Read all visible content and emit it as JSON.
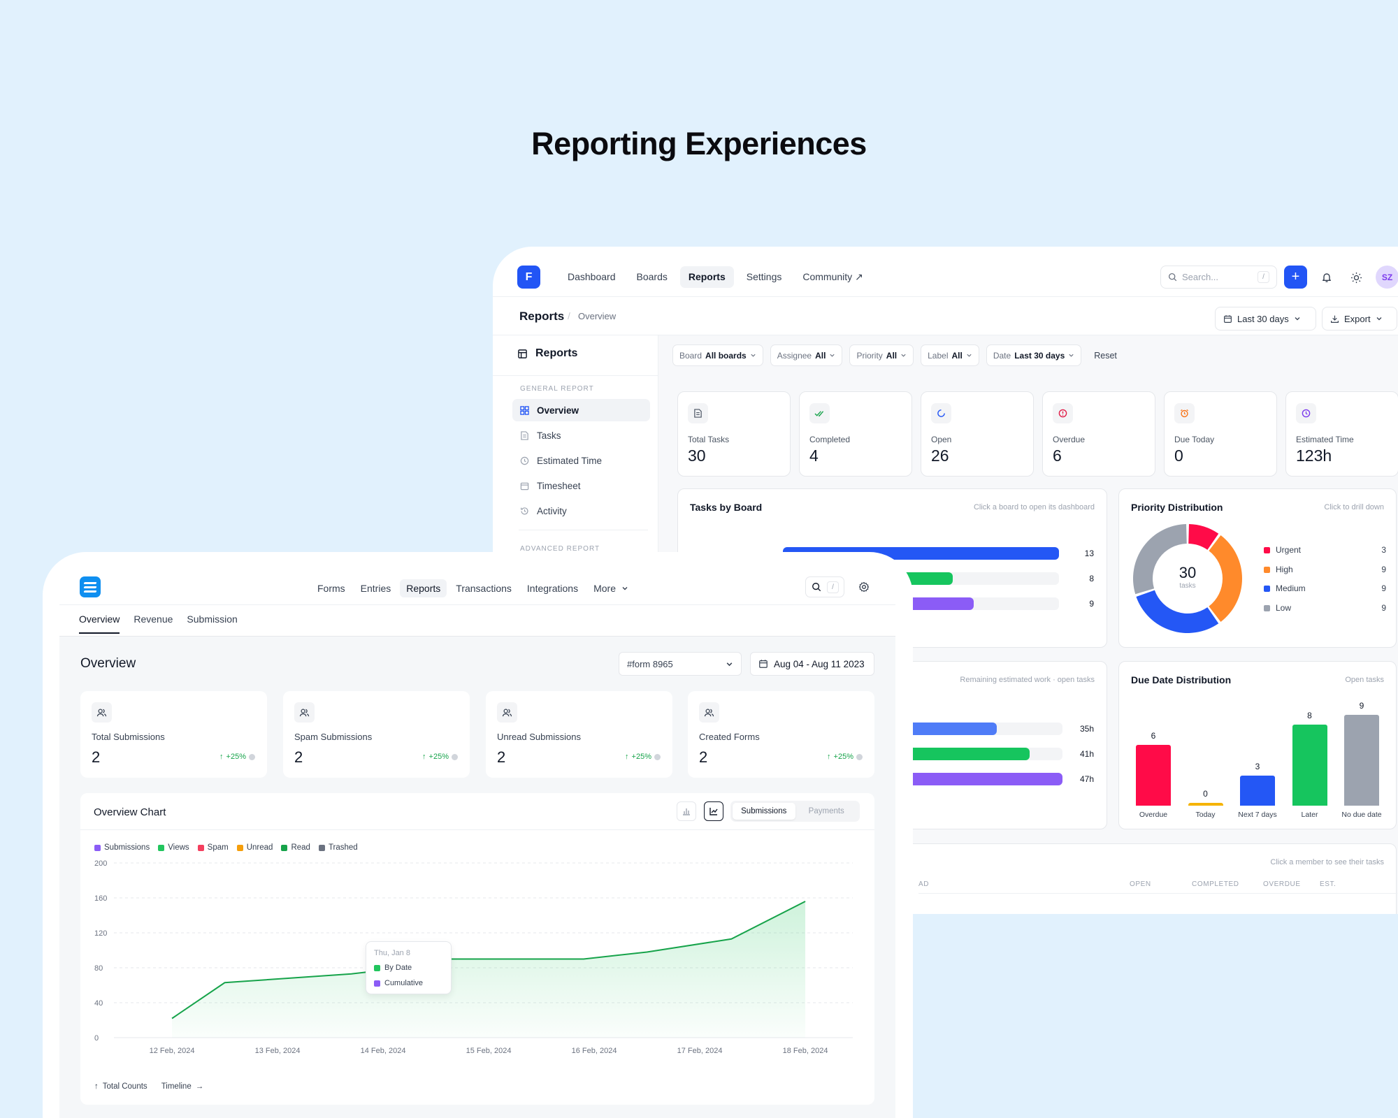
{
  "heading": "Reporting Experiences",
  "colors": {
    "accent": "#2255f5",
    "green": "#16a34a",
    "urgent": "#ff0b48",
    "high": "#ff8a2b",
    "medium": "#2457f5",
    "low": "#9ca3af"
  },
  "back": {
    "logo": "F",
    "nav": [
      {
        "label": "Dashboard",
        "active": false
      },
      {
        "label": "Boards",
        "active": false
      },
      {
        "label": "Reports",
        "active": true
      },
      {
        "label": "Settings",
        "active": false
      },
      {
        "label": "Community ↗",
        "active": false
      }
    ],
    "search": {
      "placeholder": "Search...",
      "shortcut": "/"
    },
    "plus_label": "+",
    "avatar": "SZ",
    "breadcrumb": {
      "root": "Reports",
      "separator": "/",
      "current": "Overview"
    },
    "range_button": "Last 30 days",
    "export_button": "Export",
    "sidebar": {
      "title": "Reports",
      "general_label": "GENERAL REPORT",
      "items": [
        {
          "label": "Overview",
          "icon": "grid-icon"
        },
        {
          "label": "Tasks",
          "icon": "doc-icon"
        },
        {
          "label": "Estimated Time",
          "icon": "clock-icon"
        },
        {
          "label": "Timesheet",
          "icon": "calendar-icon"
        },
        {
          "label": "Activity",
          "icon": "history-icon"
        }
      ],
      "advanced_label": "ADVANCED REPORT"
    },
    "filters": [
      {
        "key": "Board",
        "value": "All boards"
      },
      {
        "key": "Assignee",
        "value": "All"
      },
      {
        "key": "Priority",
        "value": "All"
      },
      {
        "key": "Label",
        "value": "All"
      },
      {
        "key": "Date",
        "value": "Last 30 days"
      }
    ],
    "reset_label": "Reset",
    "stats": [
      {
        "label": "Total Tasks",
        "value": "30",
        "icon": "doc-icon",
        "color": "#6b7280"
      },
      {
        "label": "Completed",
        "value": "4",
        "icon": "double-check-icon",
        "color": "#16a34a"
      },
      {
        "label": "Open",
        "value": "26",
        "icon": "spinner-icon",
        "color": "#2255f5"
      },
      {
        "label": "Overdue",
        "value": "6",
        "icon": "alert-icon",
        "color": "#e11d48"
      },
      {
        "label": "Due Today",
        "value": "0",
        "icon": "alarm-icon",
        "color": "#f97316"
      },
      {
        "label": "Estimated Time",
        "value": "123h",
        "icon": "clock-icon",
        "color": "#7c3aed"
      }
    ],
    "tasks_by_board": {
      "title": "Tasks by Board",
      "hint": "Click a board to open its dashboard",
      "max": 13,
      "bars": [
        {
          "value": 13,
          "color": "#2457f5"
        },
        {
          "value": 8,
          "color": "#16c55e"
        },
        {
          "value": 9,
          "color": "#8b5cf6"
        }
      ]
    },
    "priority": {
      "title": "Priority Distribution",
      "hint": "Click to drill down",
      "total": "30",
      "total_label": "tasks",
      "slices": [
        {
          "label": "Urgent",
          "value": 3,
          "color": "#ff0b48"
        },
        {
          "label": "High",
          "value": 9,
          "color": "#ff8a2b"
        },
        {
          "label": "Medium",
          "value": 9,
          "color": "#2457f5"
        },
        {
          "label": "Low",
          "value": 9,
          "color": "#9ca3af"
        }
      ]
    },
    "estimated": {
      "hint": "Remaining estimated work · open tasks",
      "max": 47,
      "bars": [
        {
          "value": 35,
          "label": "35h",
          "color": "#4f7cf7"
        },
        {
          "value": 41,
          "label": "41h",
          "color": "#16c55e"
        },
        {
          "value": 47,
          "label": "47h",
          "color": "#8b5cf6"
        }
      ]
    },
    "due_date": {
      "title": "Due Date Distribution",
      "hint": "Open tasks",
      "max": 9,
      "bars": [
        {
          "label": "Overdue",
          "value": 6,
          "color": "#ff0b48"
        },
        {
          "label": "Today",
          "value": 0,
          "color": "#f5b301"
        },
        {
          "label": "Next 7 days",
          "value": 3,
          "color": "#2457f5"
        },
        {
          "label": "Later",
          "value": 8,
          "color": "#16c55e"
        },
        {
          "label": "No due date",
          "value": 9,
          "color": "#9ca3af"
        }
      ]
    },
    "members": {
      "hint": "Click a member to see their tasks",
      "columns": [
        "AD",
        "OPEN",
        "COMPLETED",
        "OVERDUE",
        "EST."
      ]
    }
  },
  "front": {
    "nav": [
      {
        "label": "Forms",
        "active": false
      },
      {
        "label": "Entries",
        "active": false
      },
      {
        "label": "Reports",
        "active": true
      },
      {
        "label": "Transactions",
        "active": false
      },
      {
        "label": "Integrations",
        "active": false
      },
      {
        "label": "More",
        "active": false
      }
    ],
    "search_shortcut": "/",
    "tabs": [
      {
        "label": "Overview",
        "active": true
      },
      {
        "label": "Revenue",
        "active": false
      },
      {
        "label": "Submission",
        "active": false
      }
    ],
    "title": "Overview",
    "form_select": "#form 8965",
    "date_range": "Aug 04 - Aug 11 2023",
    "stats": [
      {
        "label": "Total Submissions",
        "value": "2",
        "delta": "+25%"
      },
      {
        "label": "Spam Submissions",
        "value": "2",
        "delta": "+25%"
      },
      {
        "label": "Unread Submissions",
        "value": "2",
        "delta": "+25%"
      },
      {
        "label": "Created Forms",
        "value": "2",
        "delta": "+25%"
      }
    ],
    "chart_card": {
      "title": "Overview Chart",
      "segments": [
        {
          "label": "Submissions",
          "active": true
        },
        {
          "label": "Payments",
          "active": false
        }
      ],
      "legend": [
        {
          "label": "Submissions",
          "color": "#8b5cf6"
        },
        {
          "label": "Views",
          "color": "#22c55e"
        },
        {
          "label": "Spam",
          "color": "#f43f5e"
        },
        {
          "label": "Unread",
          "color": "#f59e0b"
        },
        {
          "label": "Read",
          "color": "#16a34a"
        },
        {
          "label": "Trashed",
          "color": "#6b7280"
        }
      ],
      "tooltip": {
        "date": "Thu, Jan 8",
        "rows": [
          {
            "label": "By Date",
            "color": "#22c55e"
          },
          {
            "label": "Cumulative",
            "color": "#8b5cf6"
          }
        ]
      },
      "footer": {
        "left": "Total Counts",
        "right": "Timeline"
      }
    }
  },
  "chart_data": [
    {
      "type": "line",
      "title": "Overview Chart",
      "x": [
        0,
        0.5,
        1.1,
        1.7,
        2.2,
        2.6,
        3.0,
        3.9,
        4.5,
        5.3,
        6.0
      ],
      "x_ticks": [
        "12 Feb, 2024",
        "13 Feb, 2024",
        "14 Feb, 2024",
        "15 Feb, 2024",
        "16 Feb, 2024",
        "17 Feb, 2024",
        "18 Feb, 2024"
      ],
      "y_ticks": [
        0,
        40,
        80,
        120,
        160,
        200
      ],
      "ylim": [
        0,
        200
      ],
      "series": [
        {
          "values": [
            22,
            63,
            68,
            73,
            80,
            90,
            90,
            90,
            98,
            113,
            156
          ]
        }
      ],
      "grid": true
    },
    {
      "type": "bar",
      "title": "Due Date Distribution",
      "categories": [
        "Overdue",
        "Today",
        "Next 7 days",
        "Later",
        "No due date"
      ],
      "values": [
        6,
        0,
        3,
        8,
        9
      ]
    },
    {
      "type": "pie",
      "title": "Priority Distribution",
      "categories": [
        "Urgent",
        "High",
        "Medium",
        "Low"
      ],
      "values": [
        3,
        9,
        9,
        9
      ]
    }
  ]
}
